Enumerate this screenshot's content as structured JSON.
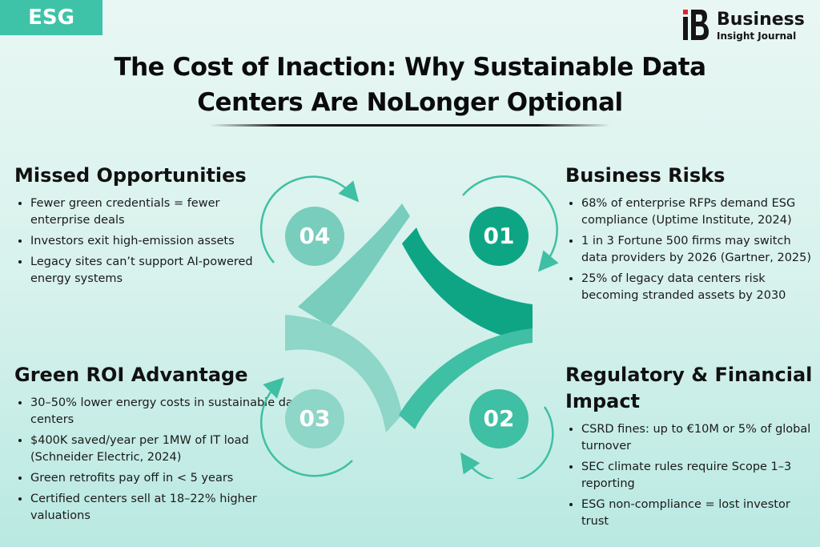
{
  "tag": "ESG",
  "brand": {
    "name": "Business",
    "subtitle": "Insight Journal"
  },
  "title_line1": "The Cost of Inaction: Why Sustainable Data",
  "title_line2": "Centers Are NoLonger Optional",
  "sections": {
    "missed": {
      "heading": "Missed Opportunities",
      "items": [
        "Fewer green credentials = fewer enterprise deals",
        "Investors exit high-emission assets",
        "Legacy sites can’t support AI-powered energy systems"
      ]
    },
    "risks": {
      "heading": "Business Risks",
      "items": [
        "68% of enterprise RFPs demand ESG compliance (Uptime Institute, 2024)",
        "1 in 3 Fortune 500 firms may switch data providers by 2026 (Gartner, 2025)",
        "25% of legacy data centers risk becoming stranded assets by 2030"
      ]
    },
    "roi": {
      "heading": "Green ROI Advantage",
      "items": [
        "30–50% lower energy costs in sustainable data centers",
        "$400K saved/year per 1MW of IT load (Schneider Electric, 2024)",
        "Green retrofits pay off in < 5 years",
        "Certified centers sell at 18–22% higher valuations"
      ]
    },
    "regulatory": {
      "heading": "Regulatory & Financial Impact",
      "items": [
        "CSRD fines: up to €10M or 5% of global turnover",
        "SEC climate rules require Scope 1–3 reporting",
        "ESG non-compliance = lost investor trust"
      ]
    }
  },
  "cycle": [
    "01",
    "02",
    "03",
    "04"
  ],
  "colors": {
    "accent": "#3fc3a8",
    "dark": "#0ea585",
    "mid": "#3fbfa4",
    "light": "#78cdbd",
    "pale": "#8ed6c7"
  }
}
